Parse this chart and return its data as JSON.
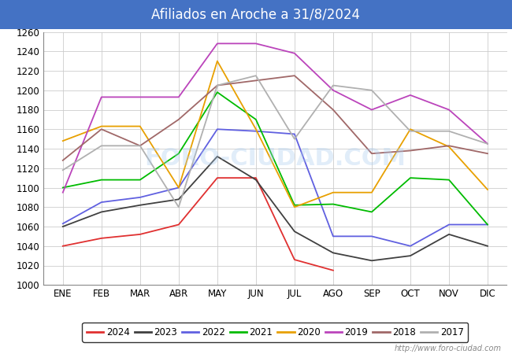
{
  "title": "Afiliados en Aroche a 31/8/2024",
  "title_bg": "#4472c4",
  "title_color": "white",
  "ylim": [
    1000,
    1260
  ],
  "yticks": [
    1000,
    1020,
    1040,
    1060,
    1080,
    1100,
    1120,
    1140,
    1160,
    1180,
    1200,
    1220,
    1240,
    1260
  ],
  "months": [
    "ENE",
    "FEB",
    "MAR",
    "ABR",
    "MAY",
    "JUN",
    "JUL",
    "AGO",
    "SEP",
    "OCT",
    "NOV",
    "DIC"
  ],
  "watermark": "http://www.foro-ciudad.com",
  "series": {
    "2024": {
      "color": "#e03030",
      "data": [
        1040,
        1048,
        1052,
        1062,
        1110,
        1110,
        1026,
        1015,
        null,
        null,
        null,
        null
      ]
    },
    "2023": {
      "color": "#404040",
      "data": [
        1060,
        1075,
        1082,
        1088,
        1132,
        1108,
        1055,
        1033,
        1025,
        1030,
        1052,
        1040
      ]
    },
    "2022": {
      "color": "#6060e0",
      "data": [
        1063,
        1085,
        1090,
        1100,
        1160,
        1158,
        1155,
        1050,
        1050,
        1040,
        1062,
        1062
      ]
    },
    "2021": {
      "color": "#00bb00",
      "data": [
        1100,
        1108,
        1108,
        1135,
        1198,
        1170,
        1082,
        1083,
        1075,
        1110,
        1108,
        1062
      ]
    },
    "2020": {
      "color": "#e8a000",
      "data": [
        1148,
        1163,
        1163,
        1100,
        1230,
        1160,
        1080,
        1095,
        1095,
        1160,
        1142,
        1098
      ]
    },
    "2019": {
      "color": "#bb44bb",
      "data": [
        1095,
        1193,
        1193,
        1193,
        1248,
        1248,
        1238,
        1200,
        1180,
        1195,
        1180,
        1145
      ]
    },
    "2018": {
      "color": "#a06868",
      "data": [
        1128,
        1160,
        1143,
        1170,
        1205,
        1210,
        1215,
        1180,
        1135,
        1138,
        1143,
        1135
      ]
    },
    "2017": {
      "color": "#b0b0b0",
      "data": [
        1118,
        1143,
        1143,
        1080,
        1205,
        1215,
        1150,
        1205,
        1200,
        1158,
        1158,
        1145
      ]
    }
  },
  "legend_order": [
    "2024",
    "2023",
    "2022",
    "2021",
    "2020",
    "2019",
    "2018",
    "2017"
  ]
}
